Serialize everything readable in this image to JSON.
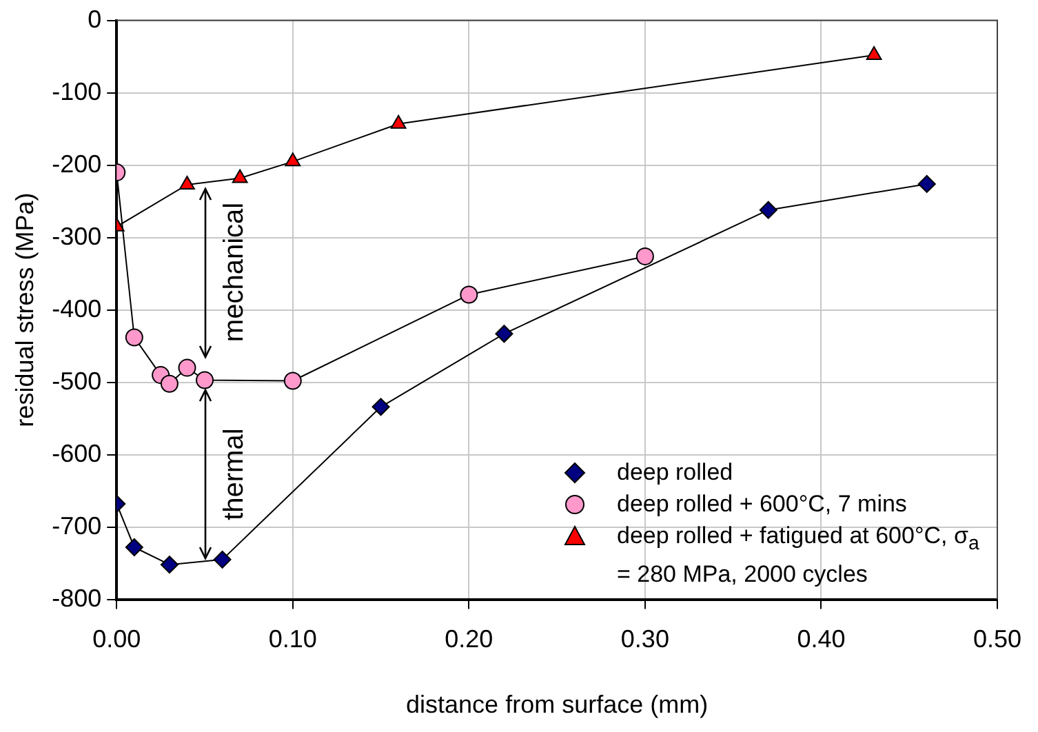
{
  "chart_data": {
    "type": "line",
    "xlabel": "distance from surface (mm)",
    "ylabel": "residual stress (MPa)",
    "xlim": [
      0,
      0.5
    ],
    "xticks": [
      {
        "value": 0,
        "label": "0.00"
      },
      {
        "value": 0.1,
        "label": "0.10"
      },
      {
        "value": 0.2,
        "label": "0.20"
      },
      {
        "value": 0.3,
        "label": "0.30"
      },
      {
        "value": 0.4,
        "label": "0.40"
      },
      {
        "value": 0.5,
        "label": "0.50"
      }
    ],
    "ylim": [
      -800,
      0
    ],
    "yticks": [
      -800,
      -700,
      -600,
      -500,
      -400,
      -300,
      -200,
      -100,
      0
    ],
    "grid": true,
    "legend": "bottom right",
    "series": [
      {
        "name": "deep rolled",
        "color": "#000080",
        "marker": "diamond",
        "x": [
          0,
          0.01,
          0.03,
          0.06,
          0.15,
          0.22,
          0.37,
          0.46
        ],
        "values": [
          -668,
          -728,
          -752,
          -745,
          -534,
          -433,
          -262,
          -226
        ]
      },
      {
        "name": "deep rolled + 600°C, 7 mins",
        "color": "#ff99cc",
        "marker": "circle",
        "x": [
          0,
          0.01,
          0.025,
          0.03,
          0.04,
          0.05,
          0.1,
          0.2,
          0.3
        ],
        "values": [
          -210,
          -438,
          -490,
          -502,
          -480,
          -497,
          -498,
          -379,
          -326
        ]
      },
      {
        "name": "deep rolled + fatigued at 600°C, σ$_{a}$ = 280 MPa, 2000 cycles",
        "color": "#ff0000",
        "marker": "triangle",
        "x": [
          0,
          0.04,
          0.07,
          0.1,
          0.16,
          0.43
        ],
        "values": [
          -285,
          -227,
          -218,
          -195,
          -143,
          -48
        ]
      }
    ],
    "annotations": [
      "mechanical",
      "thermal"
    ]
  }
}
